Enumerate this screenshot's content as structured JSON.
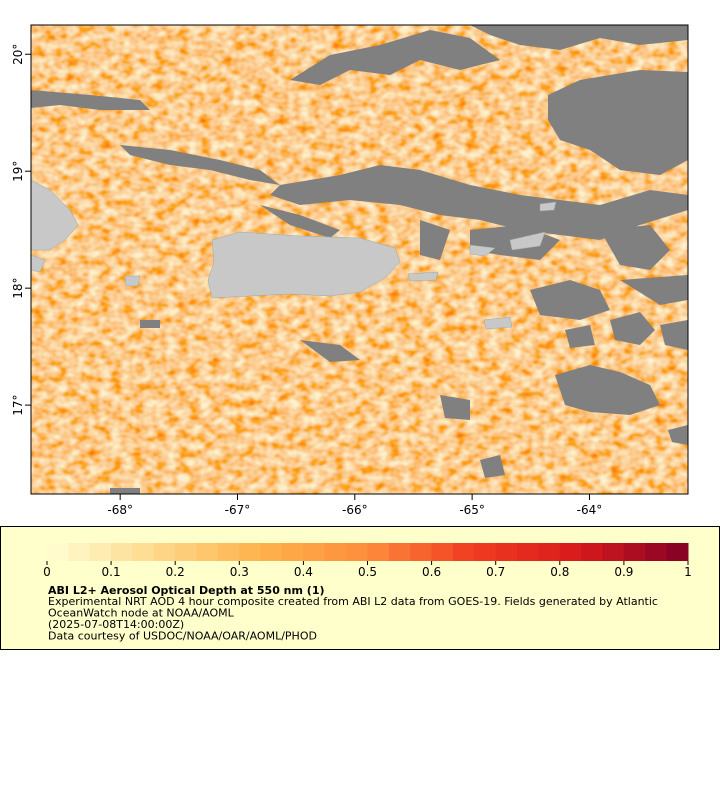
{
  "map": {
    "xlim": [
      -68.76,
      -63.16
    ],
    "ylim": [
      16.24,
      20.25
    ],
    "xticks": [
      {
        "value": -68,
        "label": "-68°"
      },
      {
        "value": -67,
        "label": "-67°"
      },
      {
        "value": -66,
        "label": "-66°"
      },
      {
        "value": -65,
        "label": "-65°"
      },
      {
        "value": -64,
        "label": "-64°"
      }
    ],
    "yticks": [
      {
        "value": 17,
        "label": "17°"
      },
      {
        "value": 18,
        "label": "18°"
      },
      {
        "value": 19,
        "label": "19°"
      },
      {
        "value": 20,
        "label": "20°"
      }
    ]
  },
  "colorbar": {
    "lim": [
      0,
      1
    ],
    "ticks": [
      0,
      0.1,
      0.2,
      0.3,
      0.4,
      0.5,
      0.6,
      0.7,
      0.8,
      0.9,
      1
    ],
    "colors": [
      "#ffffd4",
      "#fed98e",
      "#feb24c",
      "#fd8d3c",
      "#f03b20",
      "#d7191c",
      "#800026"
    ]
  },
  "caption": {
    "title": "ABI L2+ Aerosol Optical Depth at 550 nm (1)",
    "lines": [
      "Experimental NRT AOD 4 hour composite created from ABI L2 data from GOES-19. Fields generated by Atlantic",
      "OceanWatch node at NOAA/AOML",
      "(2025-07-08T14:00:00Z)",
      "Data courtesy of USDOC/NOAA/OAR/AOML/PHOD"
    ]
  }
}
